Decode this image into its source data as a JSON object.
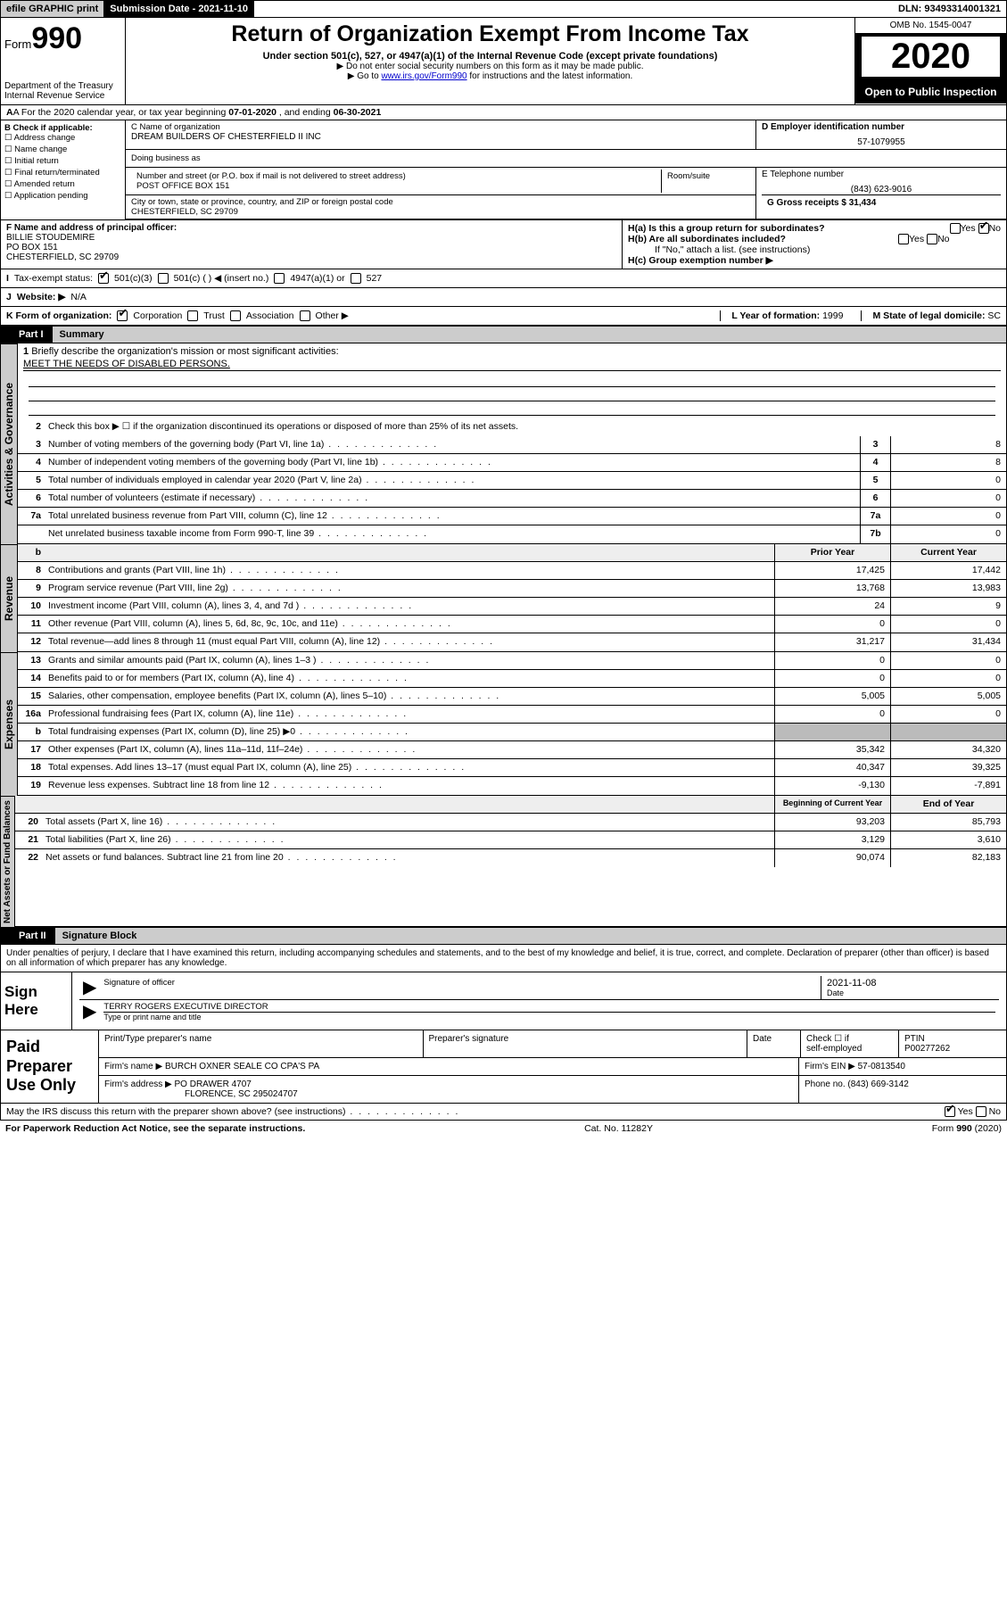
{
  "efile": {
    "print": "efile GRAPHIC print",
    "submission_label": "Submission Date - 2021-11-10",
    "dln": "DLN: 93493314001321"
  },
  "header": {
    "form_prefix": "Form",
    "form_num": "990",
    "title": "Return of Organization Exempt From Income Tax",
    "sub": "Under section 501(c), 527, or 4947(a)(1) of the Internal Revenue Code (except private foundations)",
    "note1": "▶ Do not enter social security numbers on this form as it may be made public.",
    "note2_pre": "▶ Go to ",
    "note2_link": "www.irs.gov/Form990",
    "note2_post": " for instructions and the latest information.",
    "dept": "Department of the Treasury",
    "irs": "Internal Revenue Service",
    "omb": "OMB No. 1545-0047",
    "year": "2020",
    "open_public": "Open to Public Inspection"
  },
  "rowA": {
    "text_pre": "A For the 2020 calendar year, or tax year beginning ",
    "begin": "07-01-2020",
    "mid": " , and ending ",
    "end": "06-30-2021"
  },
  "colB": {
    "label": "B Check if applicable:",
    "opts": [
      "Address change",
      "Name change",
      "Initial return",
      "Final return/terminated",
      "Amended return",
      "Application pending"
    ]
  },
  "colC": {
    "name_label": "C Name of organization",
    "name": "DREAM BUILDERS OF CHESTERFIELD II INC",
    "dba_label": "Doing business as",
    "street_label": "Number and street (or P.O. box if mail is not delivered to street address)",
    "room_label": "Room/suite",
    "street": "POST OFFICE BOX 151",
    "city_label": "City or town, state or province, country, and ZIP or foreign postal code",
    "city": "CHESTERFIELD, SC  29709"
  },
  "colD": {
    "label": "D Employer identification number",
    "val": "57-1079955"
  },
  "colE": {
    "label": "E Telephone number",
    "val": "(843) 623-9016"
  },
  "colG": {
    "label": "G Gross receipts $",
    "val": "31,434"
  },
  "colF": {
    "label": "F  Name and address of principal officer:",
    "name": "BILLIE STOUDEMIRE",
    "addr1": "PO BOX 151",
    "addr2": "CHESTERFIELD, SC  29709"
  },
  "colH": {
    "ha": "H(a)  Is this a group return for subordinates?",
    "hb": "H(b)  Are all subordinates included?",
    "hb_note": "If \"No,\" attach a list. (see instructions)",
    "hc": "H(c)  Group exemption number ▶"
  },
  "rowI": {
    "label": "Tax-exempt status:",
    "o1": "501(c)(3)",
    "o2": "501(c) (   ) ◀ (insert no.)",
    "o3": "4947(a)(1) or",
    "o4": "527"
  },
  "rowJ": {
    "label": "Website: ▶",
    "val": "N/A"
  },
  "rowK": {
    "label": "K Form of organization:",
    "opts": [
      "Corporation",
      "Trust",
      "Association",
      "Other ▶"
    ],
    "l_label": "L Year of formation:",
    "l_val": "1999",
    "m_label": "M State of legal domicile:",
    "m_val": "SC"
  },
  "part1": {
    "num": "Part I",
    "title": "Summary"
  },
  "gov": {
    "label": "Activities & Governance",
    "l1_label": "Briefly describe the organization's mission or most significant activities:",
    "l1_text": "MEET THE NEEDS OF DISABLED PERSONS.",
    "l2": "Check this box ▶ ☐  if the organization discontinued its operations or disposed of more than 25% of its net assets.",
    "rows": [
      {
        "n": "3",
        "d": "Number of voting members of the governing body (Part VI, line 1a)",
        "bn": "3",
        "v": "8"
      },
      {
        "n": "4",
        "d": "Number of independent voting members of the governing body (Part VI, line 1b)",
        "bn": "4",
        "v": "8"
      },
      {
        "n": "5",
        "d": "Total number of individuals employed in calendar year 2020 (Part V, line 2a)",
        "bn": "5",
        "v": "0"
      },
      {
        "n": "6",
        "d": "Total number of volunteers (estimate if necessary)",
        "bn": "6",
        "v": "0"
      },
      {
        "n": "7a",
        "d": "Total unrelated business revenue from Part VIII, column (C), line 12",
        "bn": "7a",
        "v": "0"
      },
      {
        "n": "",
        "d": "Net unrelated business taxable income from Form 990-T, line 39",
        "bn": "7b",
        "v": "0"
      }
    ]
  },
  "rev": {
    "label": "Revenue",
    "hdr_prior": "Prior Year",
    "hdr_curr": "Current Year",
    "rows": [
      {
        "n": "8",
        "d": "Contributions and grants (Part VIII, line 1h)",
        "p": "17,425",
        "c": "17,442"
      },
      {
        "n": "9",
        "d": "Program service revenue (Part VIII, line 2g)",
        "p": "13,768",
        "c": "13,983"
      },
      {
        "n": "10",
        "d": "Investment income (Part VIII, column (A), lines 3, 4, and 7d )",
        "p": "24",
        "c": "9"
      },
      {
        "n": "11",
        "d": "Other revenue (Part VIII, column (A), lines 5, 6d, 8c, 9c, 10c, and 11e)",
        "p": "0",
        "c": "0"
      },
      {
        "n": "12",
        "d": "Total revenue—add lines 8 through 11 (must equal Part VIII, column (A), line 12)",
        "p": "31,217",
        "c": "31,434"
      }
    ]
  },
  "exp": {
    "label": "Expenses",
    "rows": [
      {
        "n": "13",
        "d": "Grants and similar amounts paid (Part IX, column (A), lines 1–3 )",
        "p": "0",
        "c": "0"
      },
      {
        "n": "14",
        "d": "Benefits paid to or for members (Part IX, column (A), line 4)",
        "p": "0",
        "c": "0"
      },
      {
        "n": "15",
        "d": "Salaries, other compensation, employee benefits (Part IX, column (A), lines 5–10)",
        "p": "5,005",
        "c": "5,005"
      },
      {
        "n": "16a",
        "d": "Professional fundraising fees (Part IX, column (A), line 11e)",
        "p": "0",
        "c": "0"
      },
      {
        "n": "b",
        "d": "Total fundraising expenses (Part IX, column (D), line 25) ▶0",
        "p": "",
        "c": "",
        "shade": true
      },
      {
        "n": "17",
        "d": "Other expenses (Part IX, column (A), lines 11a–11d, 11f–24e)",
        "p": "35,342",
        "c": "34,320"
      },
      {
        "n": "18",
        "d": "Total expenses. Add lines 13–17 (must equal Part IX, column (A), line 25)",
        "p": "40,347",
        "c": "39,325"
      },
      {
        "n": "19",
        "d": "Revenue less expenses. Subtract line 18 from line 12",
        "p": "-9,130",
        "c": "-7,891"
      }
    ]
  },
  "net": {
    "label": "Net Assets or Fund Balances",
    "hdr_begin": "Beginning of Current Year",
    "hdr_end": "End of Year",
    "rows": [
      {
        "n": "20",
        "d": "Total assets (Part X, line 16)",
        "p": "93,203",
        "c": "85,793"
      },
      {
        "n": "21",
        "d": "Total liabilities (Part X, line 26)",
        "p": "3,129",
        "c": "3,610"
      },
      {
        "n": "22",
        "d": "Net assets or fund balances. Subtract line 21 from line 20",
        "p": "90,074",
        "c": "82,183"
      }
    ]
  },
  "part2": {
    "num": "Part II",
    "title": "Signature Block"
  },
  "sig": {
    "decl": "Under penalties of perjury, I declare that I have examined this return, including accompanying schedules and statements, and to the best of my knowledge and belief, it is true, correct, and complete. Declaration of preparer (other than officer) is based on all information of which preparer has any knowledge.",
    "here": "Sign Here",
    "officer_label": "Signature of officer",
    "date_label": "Date",
    "date_val": "2021-11-08",
    "officer_name": "TERRY ROGERS  EXECUTIVE DIRECTOR",
    "type_label": "Type or print name and title"
  },
  "prep": {
    "label": "Paid Preparer Use Only",
    "h1": "Print/Type preparer's name",
    "h2": "Preparer's signature",
    "h3": "Date",
    "h4_a": "Check ☐ if",
    "h4_b": "self-employed",
    "h5": "PTIN",
    "ptin": "P00277262",
    "firm_label": "Firm's name    ▶",
    "firm": "BURCH OXNER SEALE CO CPA'S PA",
    "ein_label": "Firm's EIN ▶",
    "ein": "57-0813540",
    "addr_label": "Firm's address ▶",
    "addr1": "PO DRAWER 4707",
    "addr2": "FLORENCE, SC  295024707",
    "phone_label": "Phone no.",
    "phone": "(843) 669-3142"
  },
  "footer": {
    "discuss": "May the IRS discuss this return with the preparer shown above? (see instructions)",
    "paperwork": "For Paperwork Reduction Act Notice, see the separate instructions.",
    "cat": "Cat. No. 11282Y",
    "form": "Form 990 (2020)"
  },
  "yn": {
    "yes": "Yes",
    "no": "No"
  }
}
